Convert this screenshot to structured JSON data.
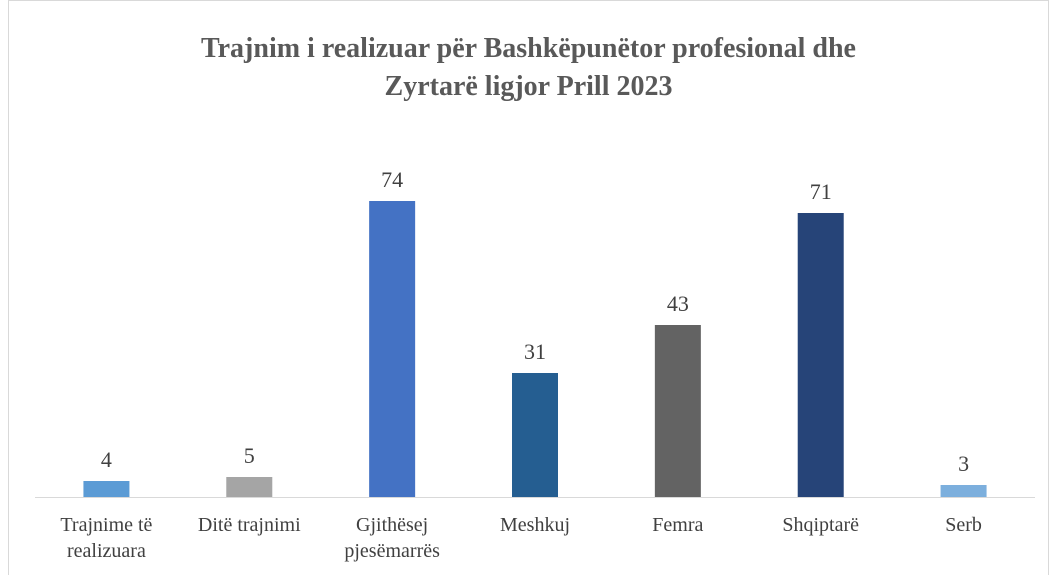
{
  "chart_data": {
    "type": "bar",
    "title": "Trajnim i realizuar për Bashkëpunëtor profesional dhe Zyrtarë ligjor Prill 2023",
    "categories": [
      "Trajnime të realizuara",
      "Ditë trajnimi",
      "Gjithësej pjesëmarrës",
      "Meshkuj",
      "Femra",
      "Shqiptarë",
      "Serb"
    ],
    "values": [
      4,
      5,
      74,
      31,
      43,
      71,
      3
    ],
    "colors": [
      "#5b9bd5",
      "#a5a5a5",
      "#4472c4",
      "#255e91",
      "#636363",
      "#264478",
      "#7cafdd"
    ]
  }
}
